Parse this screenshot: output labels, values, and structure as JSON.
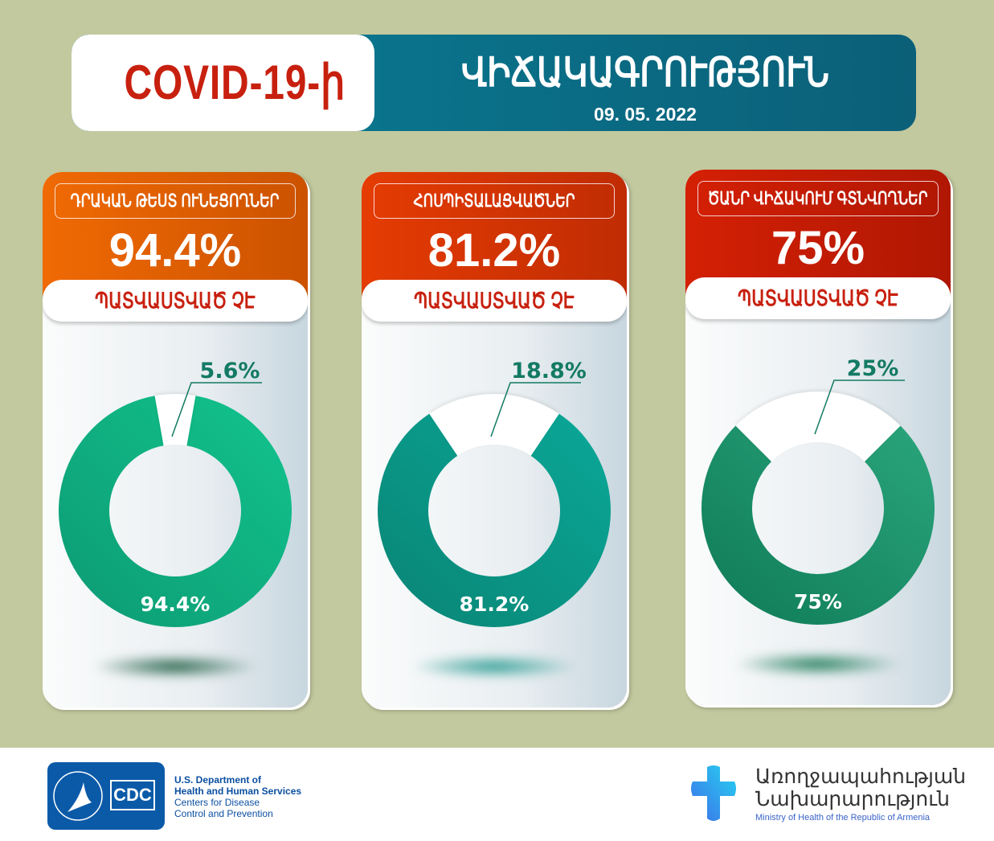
{
  "header": {
    "title_left": "COVID-19-ի",
    "title_right": "ՎԻՃԱԿԱԳՐՈՒԹՅՈՒՆ",
    "date": "09. 05. 2022"
  },
  "colors": {
    "background": "#c3c99f",
    "banner": "#0b6d87",
    "red_text": "#c8200f"
  },
  "cards": [
    {
      "label": "ԴՐԱԿԱՆ ԹԵՍՏ ՈՒՆԵՑՈՂՆԵՐ",
      "big": "94.4%",
      "pill": "ՊԱՏՎԱՍՏՎԱԾ ՉԷ",
      "head_from": "#f06a04",
      "head_to": "#cc5200",
      "ring_from": "#12c48c",
      "ring_to": "#0d9a74",
      "shadow": "#1f5e45"
    },
    {
      "label": "ՀՈՍՊԻՏԱԼԱՑՎԱԾՆԵՐ",
      "big": "81.2%",
      "pill": "ՊԱՏՎԱՍՏՎԱԾ ՉԷ",
      "head_from": "#e53c03",
      "head_to": "#c02c03",
      "ring_from": "#0aa898",
      "ring_to": "#0a8474",
      "shadow": "#2b9b92"
    },
    {
      "label": "ԾԱՆՐ ՎԻՃԱԿՈՒՄ ԳՏՆՎՈՂՆԵՐ",
      "big": "75%",
      "pill": "ՊԱՏՎԱՍՏՎԱԾ ՉԷ",
      "head_from": "#d42005",
      "head_to": "#b01703",
      "ring_from": "#2aa57c",
      "ring_to": "#0e7a56",
      "shadow": "#1d7a58"
    }
  ],
  "chart_data": [
    {
      "type": "pie",
      "title": "ԴՐԱԿԱՆ ԹԵՍՏ ՈՒՆԵՑՈՂՆԵՐ",
      "categories": [
        "ՊԱՏՎԱՍՏՎԱԾ ՉԷ",
        "other"
      ],
      "values": [
        94.4,
        5.6
      ],
      "labels": [
        "94.4%",
        "5.6%"
      ]
    },
    {
      "type": "pie",
      "title": "ՀՈՍՊԻՏԱԼԱՑՎԱԾՆԵՐ",
      "categories": [
        "ՊԱՏՎԱՍՏՎԱԾ ՉԷ",
        "other"
      ],
      "values": [
        81.2,
        18.8
      ],
      "labels": [
        "81.2%",
        "18.8%"
      ]
    },
    {
      "type": "pie",
      "title": "ԾԱՆՐ ՎԻՃԱԿՈՒՄ ԳՏՆՎՈՂՆԵՐ",
      "categories": [
        "ՊԱՏՎԱՍՏՎԱԾ ՉԷ",
        "other"
      ],
      "values": [
        75,
        25
      ],
      "labels": [
        "75%",
        "25%"
      ]
    }
  ],
  "footer": {
    "cdc_logo": "CDC",
    "hhs_lines": [
      "U.S. Department of",
      "Health and Human Services",
      "Centers for Disease",
      "Control and Prevention"
    ],
    "moh_lines": [
      "Առողջապահության",
      "Նախարարություն"
    ],
    "moh_en": "Ministry of Health of the Republic of Armenia"
  }
}
